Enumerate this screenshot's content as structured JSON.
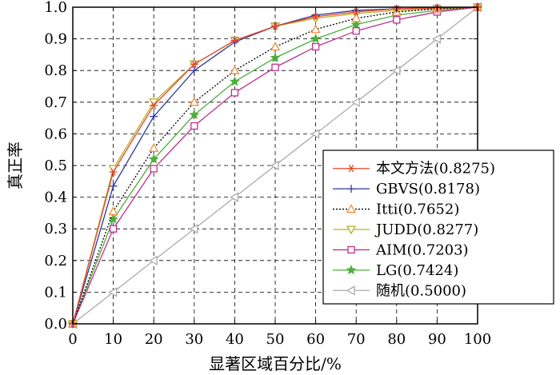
{
  "chart_data": {
    "type": "line",
    "title": "",
    "xlabel": "显著区域百分比/%",
    "ylabel": "真正率",
    "xlim": [
      0,
      100
    ],
    "ylim": [
      0,
      1
    ],
    "x_ticks": [
      "0",
      "10",
      "20",
      "30",
      "40",
      "50",
      "60",
      "70",
      "80",
      "90",
      "100"
    ],
    "y_ticks": [
      "0.0",
      "0.1",
      "0.2",
      "0.3",
      "0.4",
      "0.5",
      "0.6",
      "0.7",
      "0.8",
      "0.9",
      "1.0"
    ],
    "grid": true,
    "legend_position": "right",
    "x": [
      0,
      10,
      20,
      30,
      40,
      50,
      60,
      70,
      80,
      90,
      100
    ],
    "series": [
      {
        "name": "本文方法(0.8275)",
        "color": "#e8472a",
        "marker": "asterisk",
        "dash": "solid",
        "values": [
          0.0,
          0.48,
          0.69,
          0.82,
          0.895,
          0.94,
          0.97,
          0.985,
          0.995,
          0.998,
          1.0
        ]
      },
      {
        "name": "GBVS(0.8178)",
        "color": "#2f3a9e",
        "marker": "plus",
        "dash": "solid",
        "values": [
          0.0,
          0.435,
          0.655,
          0.8,
          0.89,
          0.94,
          0.975,
          0.99,
          0.995,
          0.998,
          1.0
        ]
      },
      {
        "name": "Itti(0.7652)",
        "color": "#f08c3c",
        "marker": "triangle-up",
        "dash": "dotted",
        "values": [
          0.0,
          0.355,
          0.555,
          0.7,
          0.8,
          0.875,
          0.93,
          0.965,
          0.985,
          0.995,
          1.0
        ]
      },
      {
        "name": "JUDD(0.8277)",
        "color": "#b5b32a",
        "marker": "triangle-down",
        "dash": "solid",
        "values": [
          0.0,
          0.49,
          0.7,
          0.82,
          0.895,
          0.94,
          0.965,
          0.98,
          0.99,
          0.995,
          1.0
        ]
      },
      {
        "name": "AIM(0.7203)",
        "color": "#c0308e",
        "marker": "square",
        "dash": "solid",
        "values": [
          0.0,
          0.3,
          0.49,
          0.625,
          0.73,
          0.81,
          0.875,
          0.925,
          0.96,
          0.985,
          1.0
        ]
      },
      {
        "name": "LG(0.7424)",
        "color": "#4caf3a",
        "marker": "star",
        "dash": "solid",
        "values": [
          0.0,
          0.33,
          0.52,
          0.66,
          0.765,
          0.84,
          0.9,
          0.945,
          0.975,
          0.99,
          1.0
        ]
      },
      {
        "name": "随机(0.5000)",
        "color": "#aaaaaa",
        "marker": "triangle-left",
        "dash": "solid",
        "values": [
          0.0,
          0.1,
          0.2,
          0.3,
          0.4,
          0.5,
          0.6,
          0.7,
          0.8,
          0.9,
          1.0
        ]
      }
    ]
  }
}
